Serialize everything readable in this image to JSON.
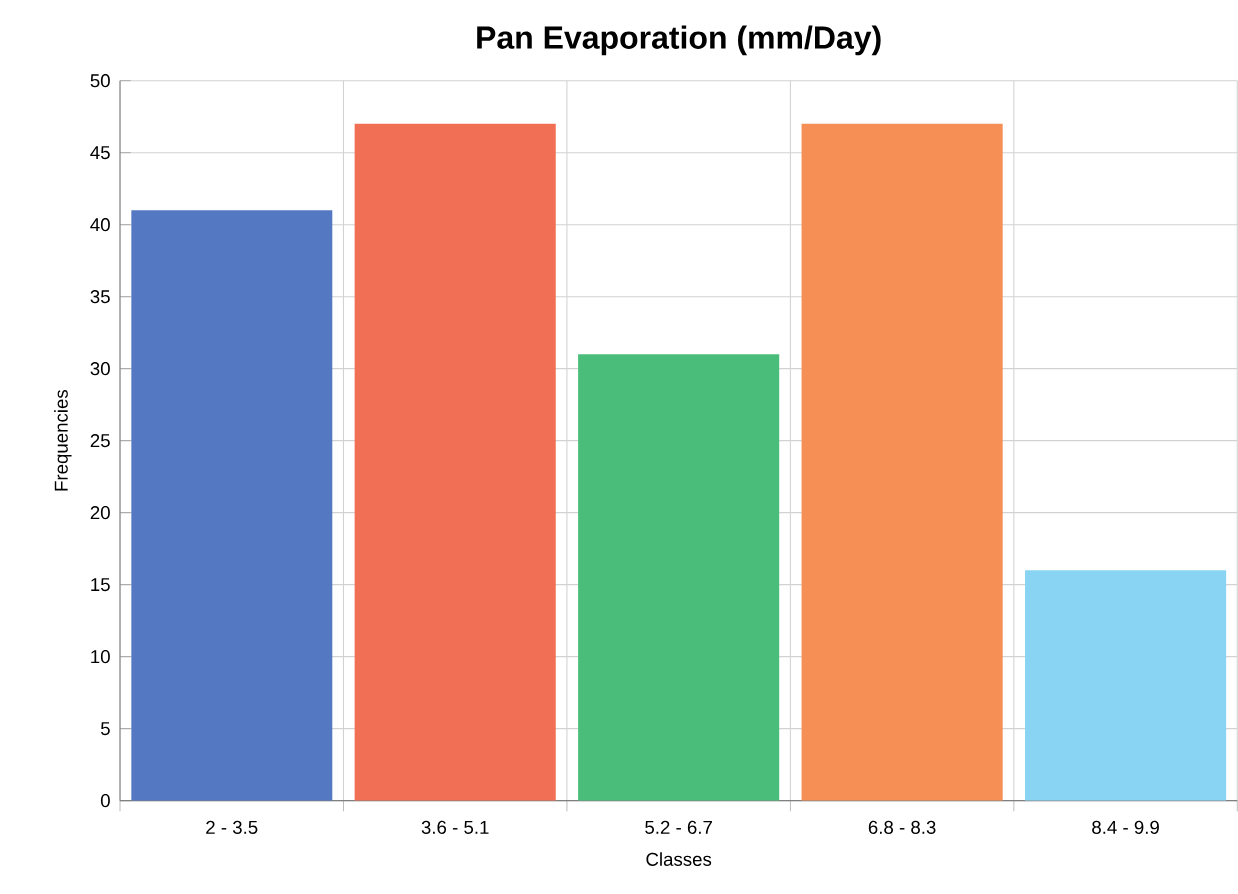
{
  "chart_data": {
    "type": "bar",
    "title": "Pan Evaporation (mm/Day)",
    "xlabel": "Classes",
    "ylabel": "Frequencies",
    "categories": [
      "2 - 3.5",
      "3.6 - 5.1",
      "5.2 - 6.7",
      "6.8 - 8.3",
      "8.4 - 9.9"
    ],
    "values": [
      41,
      47,
      31,
      47,
      16
    ],
    "colors": [
      "#5479c2",
      "#f06f55",
      "#4bbd7a",
      "#f58f55",
      "#8ad4f3"
    ],
    "ylim": [
      0,
      50
    ],
    "yticks": [
      0,
      5,
      10,
      15,
      20,
      25,
      30,
      35,
      40,
      45,
      50
    ],
    "grid": true
  }
}
